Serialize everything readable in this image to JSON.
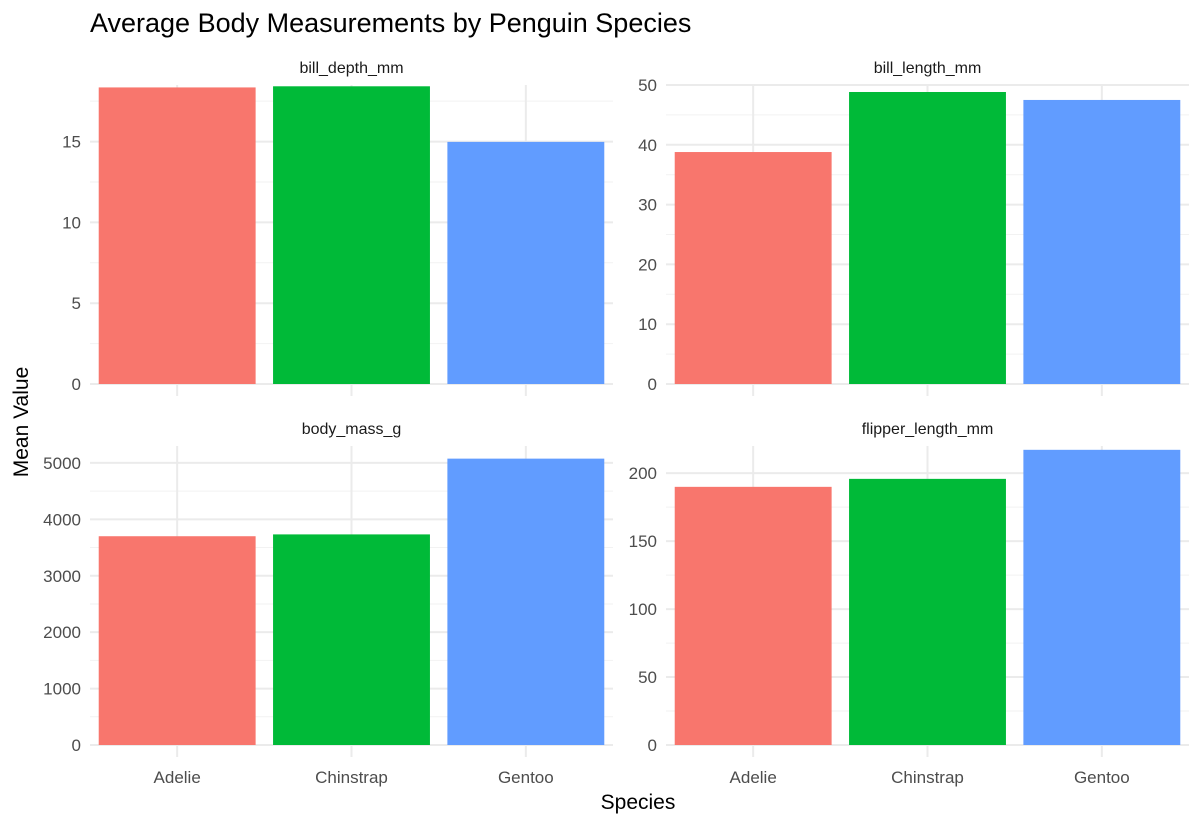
{
  "chart_data": {
    "type": "bar",
    "title": "Average Body Measurements by Penguin Species",
    "xlabel": "Species",
    "ylabel": "Mean Value",
    "categories": [
      "Adelie",
      "Chinstrap",
      "Gentoo"
    ],
    "colors": [
      "#F8766D",
      "#00BA38",
      "#619CFF"
    ],
    "grid": true,
    "legend": "none",
    "panels": [
      {
        "name": "bill_depth_mm",
        "values": [
          18.35,
          18.42,
          14.98
        ],
        "ylim": [
          0,
          18.5
        ],
        "yticks": [
          0,
          5,
          10,
          15
        ]
      },
      {
        "name": "bill_length_mm",
        "values": [
          38.79,
          48.83,
          47.5
        ],
        "ylim": [
          0,
          50
        ],
        "yticks": [
          0,
          10,
          20,
          30,
          40,
          50
        ]
      },
      {
        "name": "body_mass_g",
        "values": [
          3700.66,
          3733.09,
          5076.02
        ],
        "ylim": [
          0,
          5300
        ],
        "yticks": [
          0,
          1000,
          2000,
          3000,
          4000,
          5000
        ]
      },
      {
        "name": "flipper_length_mm",
        "values": [
          189.95,
          195.82,
          217.19
        ],
        "ylim": [
          0,
          220
        ],
        "yticks": [
          0,
          50,
          100,
          150,
          200
        ]
      }
    ]
  }
}
